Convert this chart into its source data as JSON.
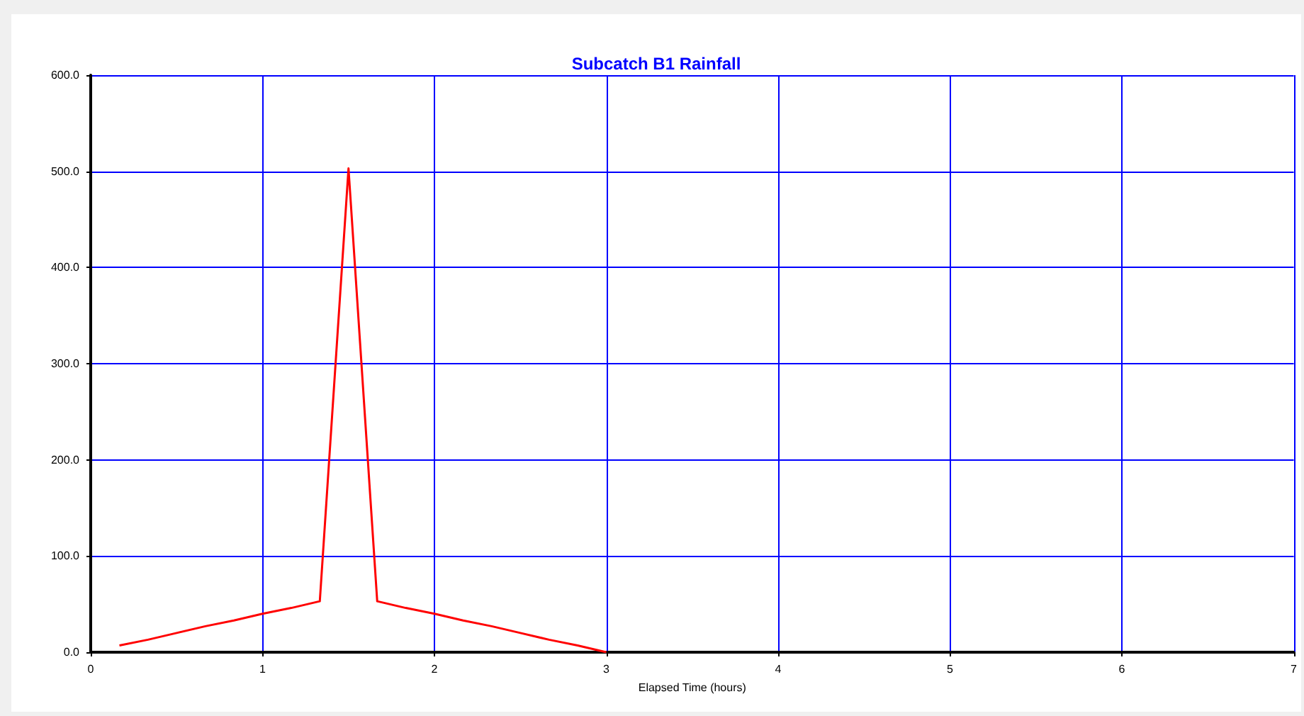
{
  "chart_data": {
    "type": "line",
    "title": "Subcatch B1 Rainfall",
    "xlabel": "Elapsed Time (hours)",
    "x": [
      0.167,
      0.333,
      0.5,
      0.667,
      0.833,
      1,
      1.167,
      1.333,
      1.5,
      1.667,
      1.833,
      2,
      2.167,
      2.333,
      2.5,
      2.667,
      2.833,
      3
    ],
    "series": [
      {
        "color": "#ff0000",
        "values": [
          7,
          13,
          20,
          27,
          33,
          40,
          46,
          53,
          503,
          53,
          46,
          40,
          33,
          27,
          20,
          13,
          7,
          0
        ]
      }
    ],
    "xlim": [
      0,
      7
    ],
    "xticks": [
      0,
      1,
      2,
      3,
      4,
      5,
      6,
      7
    ],
    "ylim": [
      0,
      600
    ],
    "yticks": [
      {
        "value": 0,
        "label": "0.0"
      },
      {
        "value": 100,
        "label": "100.0"
      },
      {
        "value": 200,
        "label": "200.0"
      },
      {
        "value": 300,
        "label": "300.0"
      },
      {
        "value": 400,
        "label": "400.0"
      },
      {
        "value": 500,
        "label": "500.0"
      },
      {
        "value": 600,
        "label": "600.0"
      }
    ],
    "grid": true,
    "marker": "none",
    "line_style": "solid"
  }
}
